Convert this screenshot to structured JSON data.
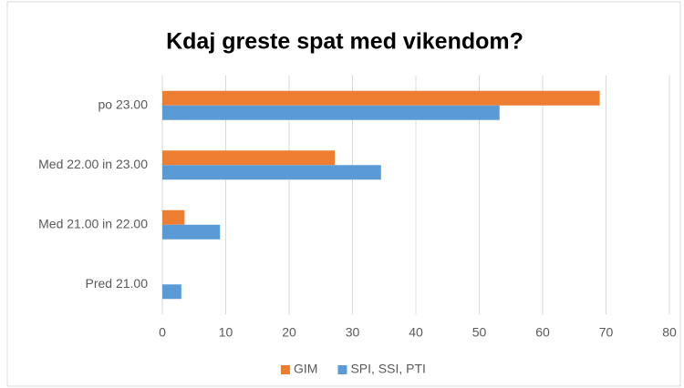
{
  "chart_data": {
    "type": "hbar",
    "title": "Kdaj greste spat med vikendom?",
    "categories": [
      "po 23.00",
      "Med 22.00 in 23.00",
      "Med 21.00 in 22.00",
      "Pred 21.00"
    ],
    "series": [
      {
        "name": "GIM",
        "color": "#ed7d31",
        "values": [
          69,
          27.2,
          3.5,
          0
        ]
      },
      {
        "name": "SPI, SSI, PTI",
        "color": "#5b9bd5",
        "values": [
          53.2,
          34.5,
          9.1,
          3
        ]
      }
    ],
    "xlim": [
      0,
      80
    ],
    "xticks": [
      0,
      10,
      20,
      30,
      40,
      50,
      60,
      70,
      80
    ],
    "grid": true,
    "legend": "bottom"
  }
}
